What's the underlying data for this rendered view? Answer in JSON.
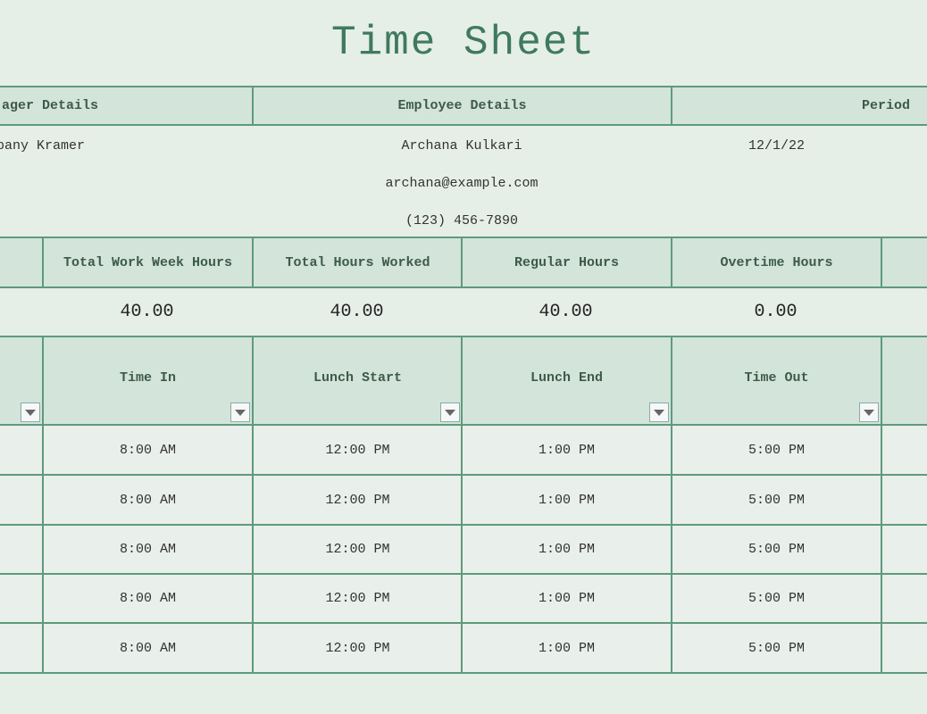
{
  "title": "Time Sheet",
  "details": {
    "manager_header": "ager Details",
    "employee_header": "Employee Details",
    "period_header": "Period",
    "manager_name": "pany Kramer",
    "employee_name": "Archana Kulkari",
    "employee_email": "archana@example.com",
    "employee_phone": "(123) 456-7890",
    "period_value": "12/1/22"
  },
  "summary": {
    "headers": [
      "Total Work Week Hours",
      "Total Hours Worked",
      "Regular Hours",
      "Overtime Hours"
    ],
    "values": [
      "40.00",
      "40.00",
      "40.00",
      "0.00"
    ]
  },
  "table": {
    "headers": [
      "Time In",
      "Lunch Start",
      "Lunch End",
      "Time Out"
    ],
    "rows": [
      [
        "8:00 AM",
        "12:00 PM",
        "1:00 PM",
        "5:00 PM"
      ],
      [
        "8:00 AM",
        "12:00 PM",
        "1:00 PM",
        "5:00 PM"
      ],
      [
        "8:00 AM",
        "12:00 PM",
        "1:00 PM",
        "5:00 PM"
      ],
      [
        "8:00 AM",
        "12:00 PM",
        "1:00 PM",
        "5:00 PM"
      ],
      [
        "8:00 AM",
        "12:00 PM",
        "1:00 PM",
        "5:00 PM"
      ]
    ]
  },
  "colors": {
    "border": "#5e9a7c",
    "header_bg": "#d3e4da",
    "background": "#e6eee8",
    "title": "#3f7a5e"
  }
}
